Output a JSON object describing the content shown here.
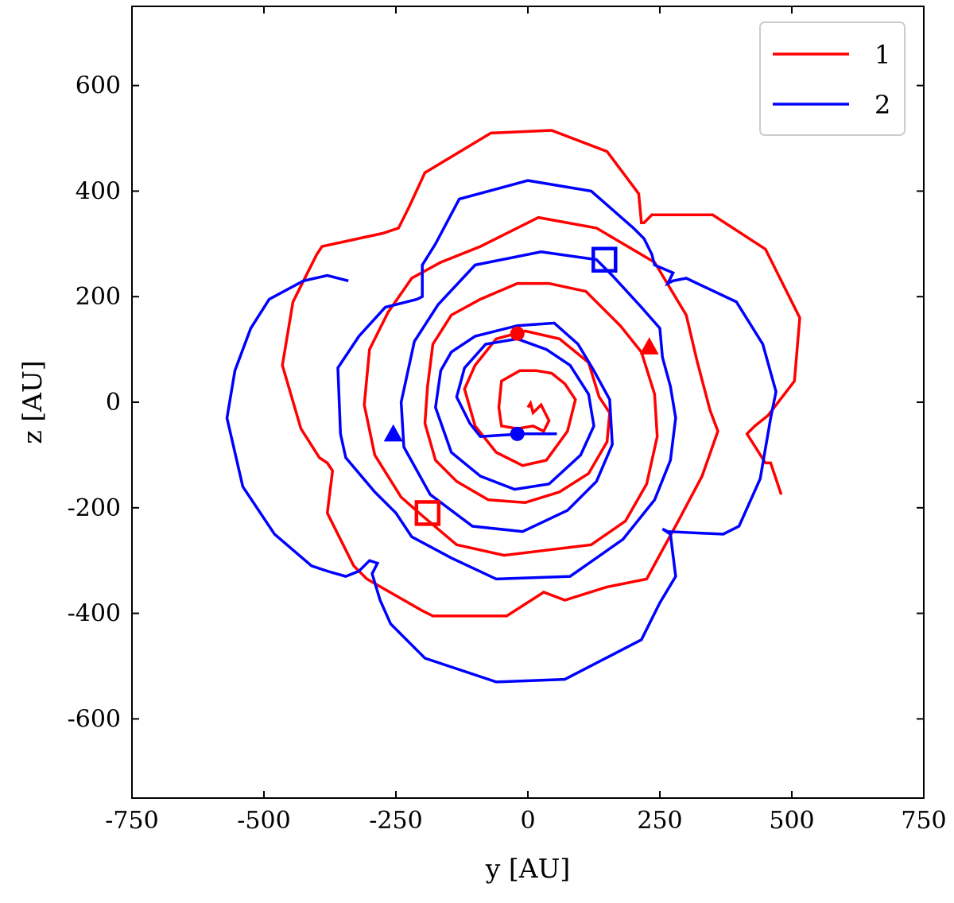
{
  "chart_data": {
    "type": "line",
    "xlabel": "y [AU]",
    "ylabel": "z [AU]",
    "xlim": [
      -750,
      750
    ],
    "ylim": [
      -750,
      750
    ],
    "xticks": [
      -750,
      -500,
      -250,
      0,
      250,
      500,
      750
    ],
    "yticks": [
      -600,
      -400,
      -200,
      0,
      200,
      400,
      600
    ],
    "xtick_labels": [
      "-750",
      "-500",
      "-250",
      "0",
      "250",
      "500",
      "750"
    ],
    "ytick_labels": [
      "-600",
      "-400",
      "-200",
      "0",
      "200",
      "400",
      "600"
    ],
    "legend": {
      "position": "top-right"
    },
    "series": [
      {
        "name": "1",
        "color": "#ff0000",
        "points": [
          [
            0,
            -10
          ],
          [
            5,
            -2
          ],
          [
            10,
            -20
          ],
          [
            25,
            -5
          ],
          [
            40,
            -35
          ],
          [
            30,
            -55
          ],
          [
            10,
            -45
          ],
          [
            -20,
            -50
          ],
          [
            -50,
            -45
          ],
          [
            -55,
            -10
          ],
          [
            -50,
            40
          ],
          [
            -15,
            60
          ],
          [
            15,
            60
          ],
          [
            45,
            55
          ],
          [
            70,
            35
          ],
          [
            90,
            5
          ],
          [
            75,
            -55
          ],
          [
            35,
            -110
          ],
          [
            -10,
            -120
          ],
          [
            -60,
            -95
          ],
          [
            -100,
            -45
          ],
          [
            -120,
            25
          ],
          [
            -100,
            70
          ],
          [
            -60,
            120
          ],
          [
            -5,
            135
          ],
          [
            60,
            120
          ],
          [
            115,
            75
          ],
          [
            135,
            10
          ],
          [
            155,
            -20
          ],
          [
            150,
            -75
          ],
          [
            115,
            -135
          ],
          [
            60,
            -170
          ],
          [
            -5,
            -190
          ],
          [
            -75,
            -185
          ],
          [
            -135,
            -150
          ],
          [
            -175,
            -110
          ],
          [
            -195,
            -40
          ],
          [
            -190,
            30
          ],
          [
            -180,
            110
          ],
          [
            -145,
            165
          ],
          [
            -90,
            195
          ],
          [
            -20,
            225
          ],
          [
            40,
            225
          ],
          [
            110,
            210
          ],
          [
            175,
            145
          ],
          [
            215,
            95
          ],
          [
            240,
            15
          ],
          [
            245,
            -65
          ],
          [
            225,
            -155
          ],
          [
            185,
            -225
          ],
          [
            120,
            -270
          ],
          [
            -45,
            -290
          ],
          [
            -135,
            -270
          ],
          [
            -200,
            -215
          ],
          [
            -240,
            -180
          ],
          [
            -290,
            -100
          ],
          [
            -310,
            -5
          ],
          [
            -300,
            100
          ],
          [
            -265,
            170
          ],
          [
            -220,
            235
          ],
          [
            -165,
            265
          ],
          [
            -90,
            295
          ],
          [
            20,
            350
          ],
          [
            130,
            330
          ],
          [
            240,
            265
          ],
          [
            300,
            165
          ],
          [
            320,
            80
          ],
          [
            345,
            -15
          ],
          [
            360,
            -55
          ],
          [
            330,
            -140
          ],
          [
            285,
            -225
          ],
          [
            255,
            -280
          ],
          [
            225,
            -335
          ],
          [
            150,
            -350
          ],
          [
            70,
            -375
          ],
          [
            30,
            -360
          ],
          [
            -40,
            -405
          ],
          [
            -180,
            -405
          ],
          [
            -200,
            -395
          ],
          [
            -305,
            -335
          ],
          [
            -330,
            -310
          ],
          [
            -380,
            -210
          ],
          [
            -370,
            -130
          ],
          [
            -380,
            -115
          ],
          [
            -395,
            -105
          ],
          [
            -430,
            -50
          ],
          [
            -465,
            70
          ],
          [
            -445,
            190
          ],
          [
            -400,
            280
          ],
          [
            -390,
            295
          ],
          [
            -275,
            320
          ],
          [
            -245,
            330
          ],
          [
            -225,
            370
          ],
          [
            -195,
            435
          ],
          [
            -70,
            510
          ],
          [
            45,
            515
          ],
          [
            150,
            475
          ],
          [
            210,
            395
          ],
          [
            215,
            340
          ],
          [
            220,
            340
          ],
          [
            235,
            355
          ],
          [
            350,
            355
          ],
          [
            450,
            290
          ],
          [
            515,
            160
          ],
          [
            505,
            40
          ],
          [
            455,
            -25
          ],
          [
            430,
            -45
          ],
          [
            415,
            -60
          ],
          [
            450,
            -115
          ],
          [
            460,
            -115
          ],
          [
            480,
            -175
          ]
        ],
        "markers": [
          {
            "shape": "circle",
            "x": -20,
            "y": 130
          },
          {
            "shape": "triangle",
            "x": 230,
            "y": 105
          },
          {
            "shape": "square",
            "x": -190,
            "y": -210
          }
        ]
      },
      {
        "name": "2",
        "color": "#0000ff",
        "points": [
          [
            55,
            -60
          ],
          [
            -10,
            -60
          ],
          [
            -90,
            -65
          ],
          [
            -110,
            -40
          ],
          [
            -135,
            10
          ],
          [
            -120,
            65
          ],
          [
            -80,
            110
          ],
          [
            -20,
            120
          ],
          [
            35,
            100
          ],
          [
            80,
            70
          ],
          [
            115,
            15
          ],
          [
            125,
            -45
          ],
          [
            100,
            -100
          ],
          [
            40,
            -155
          ],
          [
            -25,
            -165
          ],
          [
            -90,
            -140
          ],
          [
            -145,
            -95
          ],
          [
            -175,
            -10
          ],
          [
            -165,
            60
          ],
          [
            -145,
            95
          ],
          [
            -100,
            125
          ],
          [
            -20,
            145
          ],
          [
            50,
            150
          ],
          [
            95,
            110
          ],
          [
            125,
            60
          ],
          [
            155,
            5
          ],
          [
            160,
            -80
          ],
          [
            130,
            -150
          ],
          [
            75,
            -205
          ],
          [
            -10,
            -245
          ],
          [
            -105,
            -235
          ],
          [
            -185,
            -175
          ],
          [
            -235,
            -85
          ],
          [
            -240,
            0
          ],
          [
            -215,
            115
          ],
          [
            -170,
            185
          ],
          [
            -100,
            260
          ],
          [
            25,
            285
          ],
          [
            130,
            270
          ],
          [
            160,
            240
          ],
          [
            215,
            180
          ],
          [
            250,
            140
          ],
          [
            255,
            85
          ],
          [
            270,
            30
          ],
          [
            280,
            -30
          ],
          [
            270,
            -110
          ],
          [
            240,
            -185
          ],
          [
            180,
            -260
          ],
          [
            80,
            -330
          ],
          [
            -60,
            -335
          ],
          [
            -145,
            -295
          ],
          [
            -220,
            -255
          ],
          [
            -250,
            -210
          ],
          [
            -290,
            -170
          ],
          [
            -345,
            -105
          ],
          [
            -355,
            -60
          ],
          [
            -360,
            65
          ],
          [
            -320,
            125
          ],
          [
            -270,
            180
          ],
          [
            -210,
            195
          ],
          [
            -200,
            200
          ],
          [
            -200,
            260
          ],
          [
            -175,
            300
          ],
          [
            -130,
            385
          ],
          [
            0,
            420
          ],
          [
            120,
            400
          ],
          [
            200,
            330
          ],
          [
            220,
            310
          ],
          [
            235,
            280
          ],
          [
            240,
            260
          ],
          [
            275,
            245
          ],
          [
            265,
            225
          ],
          [
            275,
            230
          ],
          [
            300,
            235
          ],
          [
            395,
            190
          ],
          [
            445,
            110
          ],
          [
            470,
            20
          ],
          [
            460,
            -30
          ],
          [
            440,
            -145
          ],
          [
            400,
            -235
          ],
          [
            370,
            -250
          ],
          [
            265,
            -245
          ],
          [
            255,
            -240
          ],
          [
            270,
            -250
          ],
          [
            280,
            -330
          ],
          [
            250,
            -380
          ],
          [
            215,
            -450
          ],
          [
            70,
            -525
          ],
          [
            -60,
            -530
          ],
          [
            -195,
            -485
          ],
          [
            -260,
            -420
          ],
          [
            -280,
            -375
          ],
          [
            -295,
            -325
          ],
          [
            -285,
            -305
          ],
          [
            -300,
            -300
          ],
          [
            -320,
            -320
          ],
          [
            -345,
            -330
          ],
          [
            -380,
            -320
          ],
          [
            -410,
            -310
          ],
          [
            -480,
            -250
          ],
          [
            -540,
            -160
          ],
          [
            -570,
            -30
          ],
          [
            -555,
            60
          ],
          [
            -525,
            140
          ],
          [
            -490,
            195
          ],
          [
            -425,
            230
          ],
          [
            -380,
            240
          ],
          [
            -340,
            230
          ]
        ],
        "markers": [
          {
            "shape": "circle",
            "x": -20,
            "y": -60
          },
          {
            "shape": "triangle",
            "x": -255,
            "y": -60
          },
          {
            "shape": "square",
            "x": 145,
            "y": 270
          }
        ]
      }
    ]
  }
}
